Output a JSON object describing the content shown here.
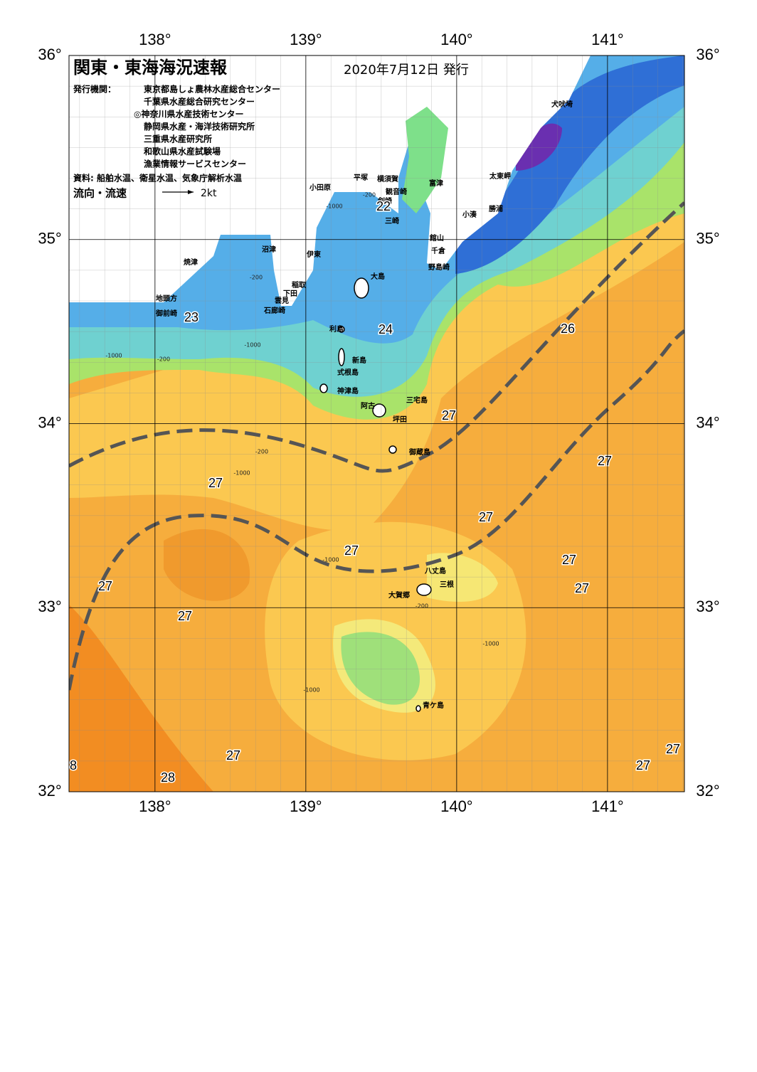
{
  "header": {
    "title": "関東・東海海況速報",
    "date": "2020年7月12日 発行"
  },
  "info": {
    "publisher_label": "発行機関：",
    "publishers": [
      "東京都島しょ農林水産総合センター",
      "千葉県水産総合研究センター",
      "◎神奈川県水産技術センター",
      "静岡県水産・海洋技術研究所",
      "三重県水産研究所",
      "和歌山県水産試験場",
      "漁業情報サービスセンター"
    ],
    "sources": "資料: 船舶水温、衛星水温、気象庁解析水温",
    "current_label": "流向・流速",
    "current_scale": "2kt"
  },
  "map": {
    "lon_range": [
      137.43,
      141.51
    ],
    "lat_range": [
      32,
      36
    ],
    "lon_ticks": [
      {
        "value": 138,
        "label": "138°"
      },
      {
        "value": 139,
        "label": "139°"
      },
      {
        "value": 140,
        "label": "140°"
      },
      {
        "value": 141,
        "label": "141°"
      }
    ],
    "lat_ticks": [
      {
        "value": 36,
        "label": "36°"
      },
      {
        "value": 35,
        "label": "35°"
      },
      {
        "value": 34,
        "label": "34°"
      },
      {
        "value": 33,
        "label": "33°"
      },
      {
        "value": 32,
        "label": "32°"
      }
    ]
  },
  "place_names": [
    "犬吠埼",
    "太東岬",
    "勝浦",
    "小湊",
    "富津",
    "館山",
    "千倉",
    "野島崎",
    "平塚",
    "横須賀",
    "観音崎",
    "剣崎",
    "三崎",
    "小田原",
    "沼津",
    "伊東",
    "焼津",
    "稲取",
    "下田",
    "雲見",
    "石廊崎",
    "地頭方",
    "御前崎",
    "大島",
    "利島",
    "新島",
    "式根島",
    "神津島",
    "三宅島",
    "阿古",
    "坪田",
    "御蔵島",
    "八丈島",
    "三根",
    "大賀郷",
    "青ケ島"
  ],
  "temperature_labels": [
    "22",
    "23",
    "24",
    "26",
    "27",
    "27",
    "27",
    "27",
    "27",
    "27",
    "27",
    "27",
    "27",
    "27",
    "27",
    "27",
    "8",
    "28"
  ],
  "depth_labels": [
    "-200",
    "-1000",
    "-200",
    "-1000",
    "-200",
    "-1000",
    "-200",
    "-1000",
    "-1000",
    "-1000",
    "-200",
    "-1000"
  ]
}
